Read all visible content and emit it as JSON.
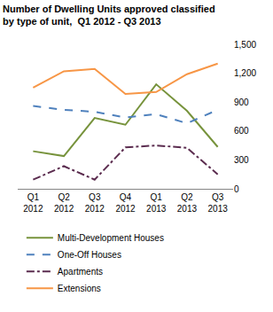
{
  "chart_data": {
    "type": "line",
    "title": "Number of Dwelling Units approved classified\nby type of unit,  Q1 2012 - Q3 2013",
    "categories": [
      "Q1 2012",
      "Q2 2012",
      "Q3 2012",
      "Q4 2012",
      "Q1 2013",
      "Q2 2013",
      "Q3 2013"
    ],
    "series": [
      {
        "name": "Multi-Development Houses",
        "color": "#77933c",
        "line_style": "solid",
        "values": [
          390,
          340,
          735,
          665,
          1085,
          810,
          435
        ]
      },
      {
        "name": "One-Off Houses",
        "color": "#4f81bd",
        "line_style": "dash",
        "values": [
          860,
          820,
          800,
          740,
          775,
          680,
          820
        ]
      },
      {
        "name": "Apartments",
        "color": "#5b2c4f",
        "line_style": "dashdot",
        "values": [
          95,
          235,
          95,
          430,
          450,
          425,
          150
        ]
      },
      {
        "name": "Extensions",
        "color": "#f79646",
        "line_style": "solid",
        "values": [
          1050,
          1220,
          1245,
          985,
          1005,
          1190,
          1300
        ]
      }
    ],
    "ylim": [
      0,
      1500
    ],
    "yticks": [
      0,
      300,
      600,
      900,
      {
        "value": 1200,
        "label": "1,200"
      },
      {
        "value": 1500,
        "label": "1,500"
      }
    ],
    "grid": false,
    "legend": "bottom"
  }
}
